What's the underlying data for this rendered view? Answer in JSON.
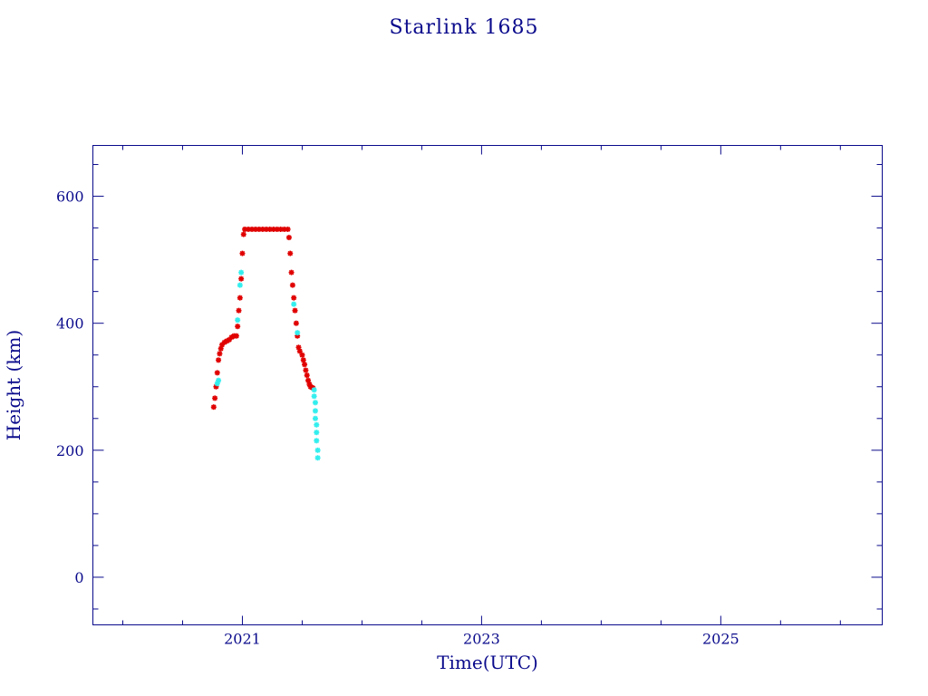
{
  "chart_data": {
    "type": "scatter",
    "title": "Starlink 1685",
    "xlabel": "Time(UTC)",
    "ylabel": "Height (km)",
    "xlim": [
      2019.75,
      2026.35
    ],
    "ylim": [
      -75,
      680
    ],
    "x_major_ticks": [
      2021,
      2023,
      2025
    ],
    "x_tick_labels": [
      "2021",
      "2023",
      "2025"
    ],
    "x_minor_step": 0.5,
    "y_major_ticks": [
      0,
      200,
      400,
      600
    ],
    "y_tick_labels": [
      "0",
      "200",
      "400",
      "600"
    ],
    "y_minor_step": 50,
    "grid": false,
    "colors": {
      "frame": "#0a0a8c",
      "primary": "#e00000",
      "secondary": "#33eeee"
    },
    "series": [
      {
        "color": "#e00000",
        "points": [
          [
            2020.76,
            268
          ],
          [
            2020.77,
            282
          ],
          [
            2020.78,
            300
          ],
          [
            2020.79,
            322
          ],
          [
            2020.8,
            342
          ],
          [
            2020.81,
            352
          ],
          [
            2020.82,
            360
          ],
          [
            2020.83,
            366
          ],
          [
            2020.85,
            370
          ],
          [
            2020.87,
            372
          ],
          [
            2020.89,
            374
          ],
          [
            2020.91,
            378
          ],
          [
            2020.93,
            380
          ],
          [
            2020.95,
            380
          ],
          [
            2020.96,
            395
          ],
          [
            2020.97,
            420
          ],
          [
            2020.98,
            440
          ],
          [
            2020.99,
            470
          ],
          [
            2021.0,
            510
          ],
          [
            2021.01,
            540
          ],
          [
            2021.02,
            548
          ],
          [
            2021.05,
            548
          ],
          [
            2021.08,
            548
          ],
          [
            2021.11,
            548
          ],
          [
            2021.14,
            548
          ],
          [
            2021.17,
            548
          ],
          [
            2021.2,
            548
          ],
          [
            2021.23,
            548
          ],
          [
            2021.26,
            548
          ],
          [
            2021.29,
            548
          ],
          [
            2021.32,
            548
          ],
          [
            2021.35,
            548
          ],
          [
            2021.38,
            548
          ],
          [
            2021.39,
            535
          ],
          [
            2021.4,
            510
          ],
          [
            2021.41,
            480
          ],
          [
            2021.42,
            460
          ],
          [
            2021.43,
            440
          ],
          [
            2021.44,
            420
          ],
          [
            2021.45,
            400
          ],
          [
            2021.46,
            380
          ],
          [
            2021.47,
            362
          ],
          [
            2021.48,
            356
          ],
          [
            2021.5,
            350
          ],
          [
            2021.51,
            342
          ],
          [
            2021.52,
            335
          ],
          [
            2021.53,
            326
          ],
          [
            2021.54,
            318
          ],
          [
            2021.55,
            310
          ],
          [
            2021.56,
            304
          ],
          [
            2021.57,
            300
          ],
          [
            2021.58,
            299
          ],
          [
            2021.59,
            298
          ]
        ]
      },
      {
        "color": "#33eeee",
        "points": [
          [
            2020.79,
            305
          ],
          [
            2020.8,
            310
          ],
          [
            2020.96,
            405
          ],
          [
            2020.98,
            460
          ],
          [
            2020.99,
            480
          ],
          [
            2021.43,
            430
          ],
          [
            2021.46,
            385
          ],
          [
            2021.6,
            295
          ],
          [
            2021.6,
            285
          ],
          [
            2021.61,
            275
          ],
          [
            2021.61,
            262
          ],
          [
            2021.61,
            250
          ],
          [
            2021.62,
            240
          ],
          [
            2021.62,
            228
          ],
          [
            2021.62,
            215
          ],
          [
            2021.63,
            200
          ],
          [
            2021.63,
            188
          ]
        ]
      }
    ]
  }
}
